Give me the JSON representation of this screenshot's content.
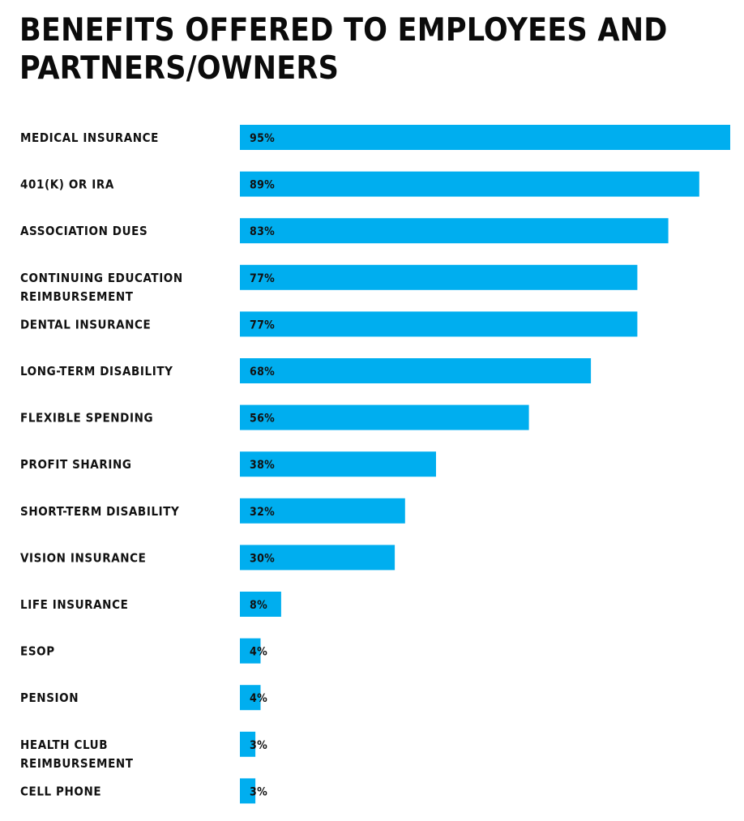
{
  "colors": {
    "bar": "#00AEEF",
    "text": "#111111"
  },
  "chart_data": {
    "type": "bar",
    "orientation": "horizontal",
    "title": "BENEFITS OFFERED TO EMPLOYEES AND PARTNERS/OWNERS",
    "xlabel": "",
    "ylabel": "",
    "xlim": [
      0,
      95
    ],
    "grid": false,
    "legend": "none",
    "categories": [
      [
        "MEDICAL INSURANCE"
      ],
      [
        "401(K) OR IRA"
      ],
      [
        "ASSOCIATION DUES"
      ],
      [
        "CONTINUING EDUCATION",
        "REIMBURSEMENT"
      ],
      [
        "DENTAL INSURANCE"
      ],
      [
        "LONG-TERM DISABILITY"
      ],
      [
        "FLEXIBLE SPENDING"
      ],
      [
        "PROFIT SHARING"
      ],
      [
        "SHORT-TERM DISABILITY"
      ],
      [
        "VISION INSURANCE"
      ],
      [
        "LIFE INSURANCE"
      ],
      [
        "ESOP"
      ],
      [
        "PENSION"
      ],
      [
        "HEALTH CLUB",
        "REIMBURSEMENT"
      ],
      [
        "CELL PHONE"
      ]
    ],
    "values": [
      95,
      89,
      83,
      77,
      77,
      68,
      56,
      38,
      32,
      30,
      8,
      4,
      4,
      3,
      3
    ],
    "value_labels": [
      "95%",
      "89%",
      "83%",
      "77%",
      "77%",
      "68%",
      "56%",
      "38%",
      "32%",
      "30%",
      "8%",
      "4%",
      "4%",
      "3%",
      "3%"
    ]
  }
}
